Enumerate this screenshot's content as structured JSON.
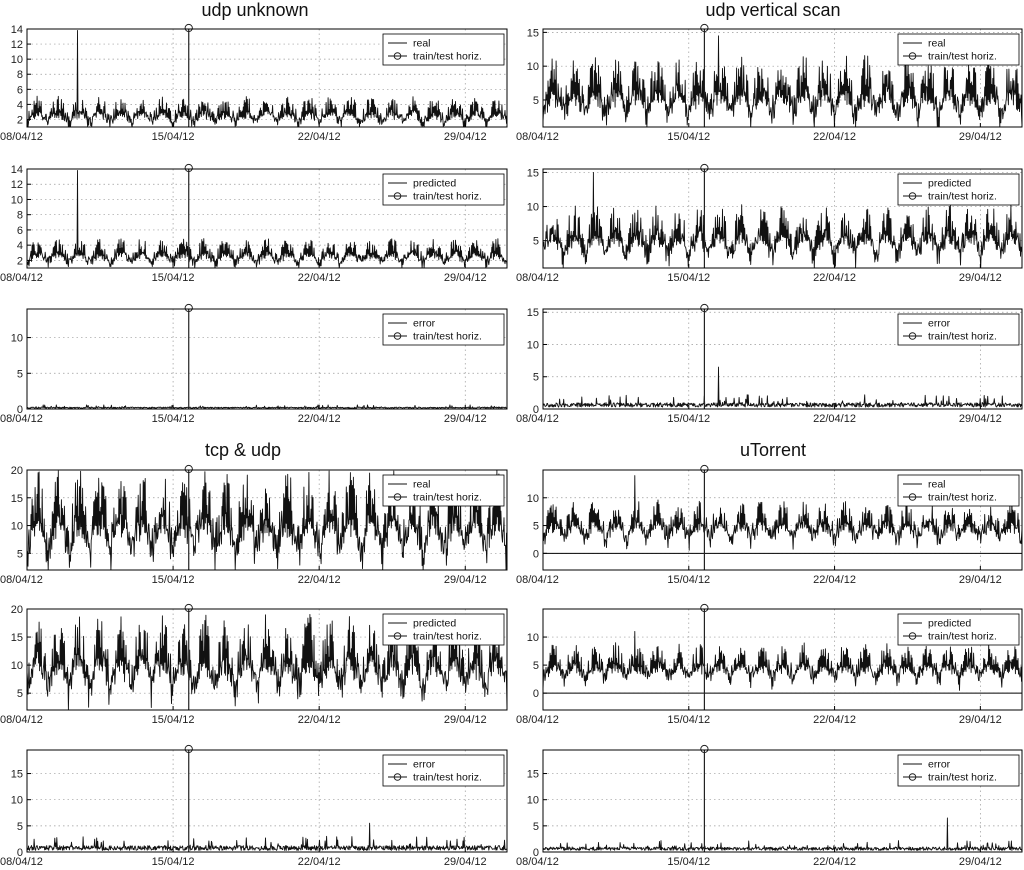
{
  "page_titles": [
    "udp unknown",
    "udp vertical scan",
    "tcp & udp",
    "uTorrent"
  ],
  "chart_data": [
    {
      "type": "line",
      "group": 0,
      "title": "udp unknown",
      "legend": [
        "real",
        "train/test horiz."
      ],
      "legend_position": "top-right",
      "grid": true,
      "ylim": [
        1,
        14
      ],
      "yticks": [
        2,
        4,
        6,
        8,
        10,
        12,
        14
      ],
      "x_range": [
        "08/04/12",
        "01/05/12"
      ],
      "xticks": [
        "08/04/12",
        "15/04/12",
        "22/04/12",
        "29/04/12"
      ],
      "train_test_horizon": "15/04/12 18:00",
      "series": [
        {
          "name": "real",
          "baseline": 1.5,
          "daily_peak": 4.0,
          "spike": {
            "date": "10/04/12",
            "value": 13.8
          }
        }
      ]
    },
    {
      "type": "line",
      "group": 0,
      "legend": [
        "predicted",
        "train/test horiz."
      ],
      "legend_position": "top-right",
      "grid": true,
      "ylim": [
        1,
        14
      ],
      "yticks": [
        2,
        4,
        6,
        8,
        10,
        12,
        14
      ],
      "x_range": [
        "08/04/12",
        "01/05/12"
      ],
      "xticks": [
        "08/04/12",
        "15/04/12",
        "22/04/12",
        "29/04/12"
      ],
      "train_test_horizon": "15/04/12 18:00",
      "series": [
        {
          "name": "predicted",
          "baseline": 1.6,
          "daily_peak": 3.9,
          "spike": {
            "date": "10/04/12",
            "value": 13.8
          }
        }
      ]
    },
    {
      "type": "line",
      "group": 0,
      "legend": [
        "error",
        "train/test horiz."
      ],
      "legend_position": "top-right",
      "grid": true,
      "ylim": [
        0,
        14
      ],
      "yticks": [
        0,
        5,
        10
      ],
      "x_range": [
        "08/04/12",
        "01/05/12"
      ],
      "xticks": [
        "08/04/12",
        "15/04/12",
        "22/04/12",
        "29/04/12"
      ],
      "train_test_horizon": "15/04/12 18:00",
      "series": [
        {
          "name": "error",
          "baseline": 0.1,
          "daily_peak": 0.4
        }
      ]
    },
    {
      "type": "line",
      "group": 1,
      "title": "udp vertical scan",
      "legend": [
        "real",
        "train/test horiz."
      ],
      "legend_position": "top-right",
      "grid": true,
      "ylim": [
        1,
        15.5
      ],
      "yticks": [
        5,
        10,
        15
      ],
      "x_range": [
        "08/04/12",
        "01/05/12"
      ],
      "xticks": [
        "08/04/12",
        "15/04/12",
        "22/04/12",
        "29/04/12"
      ],
      "train_test_horizon": "15/04/12 18:00",
      "series": [
        {
          "name": "real",
          "baseline": 2.5,
          "daily_peak": 9,
          "spike": {
            "date": "16/04/12",
            "value": 14.5
          }
        }
      ]
    },
    {
      "type": "line",
      "group": 1,
      "legend": [
        "predicted",
        "train/test horiz."
      ],
      "legend_position": "top-right",
      "grid": true,
      "ylim": [
        1,
        15.5
      ],
      "yticks": [
        5,
        10,
        15
      ],
      "x_range": [
        "08/04/12",
        "01/05/12"
      ],
      "xticks": [
        "08/04/12",
        "15/04/12",
        "22/04/12",
        "29/04/12"
      ],
      "train_test_horizon": "15/04/12 18:00",
      "series": [
        {
          "name": "predicted",
          "baseline": 2.8,
          "daily_peak": 8,
          "spike": {
            "date": "10/04/12",
            "value": 15
          }
        }
      ]
    },
    {
      "type": "line",
      "group": 1,
      "legend": [
        "error",
        "train/test horiz."
      ],
      "legend_position": "top-right",
      "grid": true,
      "ylim": [
        0,
        15.5
      ],
      "yticks": [
        0,
        5,
        10,
        15
      ],
      "x_range": [
        "08/04/12",
        "01/05/12"
      ],
      "xticks": [
        "08/04/12",
        "15/04/12",
        "22/04/12",
        "29/04/12"
      ],
      "train_test_horizon": "15/04/12 18:00",
      "series": [
        {
          "name": "error",
          "baseline": 0.3,
          "daily_peak": 1.5,
          "spike": {
            "date": "16/04/12",
            "value": 6.5
          }
        }
      ]
    },
    {
      "type": "line",
      "group": 2,
      "title": "tcp & udp",
      "legend": [
        "real",
        "train/test horiz."
      ],
      "legend_position": "top-right",
      "grid": true,
      "ylim": [
        2,
        20
      ],
      "yticks": [
        5,
        10,
        15,
        20
      ],
      "x_range": [
        "08/04/12",
        "01/05/12"
      ],
      "xticks": [
        "08/04/12",
        "15/04/12",
        "22/04/12",
        "29/04/12"
      ],
      "train_test_horizon": "15/04/12 18:00",
      "series": [
        {
          "name": "real",
          "baseline": 5,
          "daily_peak": 15.5
        }
      ]
    },
    {
      "type": "line",
      "group": 2,
      "legend": [
        "predicted",
        "train/test horiz."
      ],
      "legend_position": "top-right",
      "grid": true,
      "ylim": [
        2,
        20
      ],
      "yticks": [
        5,
        10,
        15,
        20
      ],
      "x_range": [
        "08/04/12",
        "01/05/12"
      ],
      "xticks": [
        "08/04/12",
        "15/04/12",
        "22/04/12",
        "29/04/12"
      ],
      "train_test_horizon": "15/04/12 18:00",
      "series": [
        {
          "name": "predicted",
          "baseline": 5.5,
          "daily_peak": 15
        }
      ]
    },
    {
      "type": "line",
      "group": 2,
      "legend": [
        "error",
        "train/test horiz."
      ],
      "legend_position": "top-right",
      "grid": true,
      "ylim": [
        0,
        19.5
      ],
      "yticks": [
        0,
        5,
        10,
        15
      ],
      "x_range": [
        "08/04/12",
        "01/05/12"
      ],
      "xticks": [
        "08/04/12",
        "15/04/12",
        "22/04/12",
        "29/04/12"
      ],
      "train_test_horizon": "15/04/12 18:00",
      "series": [
        {
          "name": "error",
          "baseline": 0.3,
          "daily_peak": 2,
          "spike": {
            "date": "24/04/12",
            "value": 5.5
          }
        }
      ]
    },
    {
      "type": "line",
      "group": 3,
      "title": "uTorrent",
      "legend": [
        "real",
        "train/test horiz."
      ],
      "legend_position": "top-right",
      "grid": true,
      "ylim": [
        -3,
        15
      ],
      "yticks": [
        0,
        5,
        10
      ],
      "x_range": [
        "08/04/12",
        "01/05/12"
      ],
      "xticks": [
        "08/04/12",
        "15/04/12",
        "22/04/12",
        "29/04/12"
      ],
      "train_test_horizon": "15/04/12 18:00",
      "series": [
        {
          "name": "real",
          "baseline": 2.5,
          "daily_peak": 7.5,
          "spike": {
            "date": "12/04/12",
            "value": 14
          }
        }
      ]
    },
    {
      "type": "line",
      "group": 3,
      "legend": [
        "predicted",
        "train/test horiz."
      ],
      "legend_position": "top-right",
      "grid": true,
      "ylim": [
        -3,
        15
      ],
      "yticks": [
        0,
        5,
        10
      ],
      "x_range": [
        "08/04/12",
        "01/05/12"
      ],
      "xticks": [
        "08/04/12",
        "15/04/12",
        "22/04/12",
        "29/04/12"
      ],
      "train_test_horizon": "15/04/12 18:00",
      "series": [
        {
          "name": "predicted",
          "baseline": 2.5,
          "daily_peak": 7,
          "spike": {
            "date": "12/04/12",
            "value": 11
          }
        }
      ]
    },
    {
      "type": "line",
      "group": 3,
      "legend": [
        "error",
        "train/test horiz."
      ],
      "legend_position": "top-right",
      "grid": true,
      "ylim": [
        0,
        19.5
      ],
      "yticks": [
        0,
        5,
        10,
        15
      ],
      "x_range": [
        "08/04/12",
        "01/05/12"
      ],
      "xticks": [
        "08/04/12",
        "15/04/12",
        "22/04/12",
        "29/04/12"
      ],
      "train_test_horizon": "15/04/12 18:00",
      "series": [
        {
          "name": "error",
          "baseline": 0.3,
          "daily_peak": 1.5,
          "spike": {
            "date": "27/04/12",
            "value": 6.5
          }
        }
      ]
    }
  ]
}
